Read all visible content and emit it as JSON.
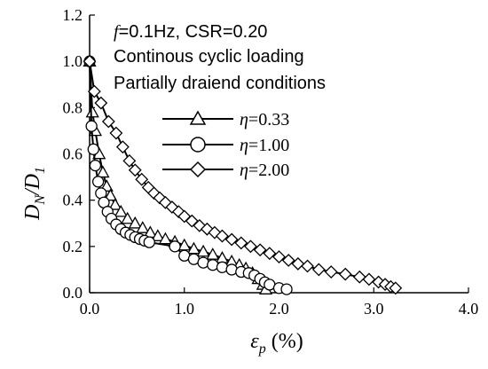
{
  "chart_data": {
    "type": "line",
    "xlim": [
      0,
      4.0
    ],
    "ylim": [
      0,
      1.2
    ],
    "x_ticks": [
      "0.0",
      "1.0",
      "2.0",
      "3.0",
      "4.0"
    ],
    "y_ticks": [
      "0.0",
      "0.2",
      "0.4",
      "0.6",
      "0.8",
      "1.0",
      "1.2"
    ],
    "xlabel": {
      "main": "ε",
      "sub": "p",
      "rest": " (%)"
    },
    "ylabel": {
      "a": "D",
      "a_sub": "N",
      "b": "/D",
      "b_sub": "1"
    },
    "annotations": {
      "line1_f": "f",
      "line1_rest": "=0.1Hz,  CSR=0.20",
      "line2": "Continous cyclic loading",
      "line3": "Partially draiend conditions"
    },
    "legend_placement": "center",
    "series": [
      {
        "name": "η=0.33",
        "eta": "η",
        "value": "=0.33",
        "marker": "triangle",
        "points": [
          [
            0.0,
            1.0
          ],
          [
            0.03,
            0.78
          ],
          [
            0.06,
            0.7
          ],
          [
            0.1,
            0.6
          ],
          [
            0.14,
            0.52
          ],
          [
            0.18,
            0.46
          ],
          [
            0.22,
            0.42
          ],
          [
            0.27,
            0.38
          ],
          [
            0.33,
            0.35
          ],
          [
            0.4,
            0.32
          ],
          [
            0.48,
            0.3
          ],
          [
            0.56,
            0.28
          ],
          [
            0.64,
            0.26
          ],
          [
            0.72,
            0.245
          ],
          [
            0.8,
            0.232
          ],
          [
            0.9,
            0.22
          ],
          [
            1.0,
            0.205
          ],
          [
            1.1,
            0.19
          ],
          [
            1.2,
            0.178
          ],
          [
            1.3,
            0.165
          ],
          [
            1.4,
            0.15
          ],
          [
            1.5,
            0.135
          ],
          [
            1.58,
            0.12
          ],
          [
            1.65,
            0.105
          ],
          [
            1.72,
            0.085
          ],
          [
            1.78,
            0.06
          ],
          [
            1.83,
            0.035
          ],
          [
            1.86,
            0.015
          ]
        ]
      },
      {
        "name": "η=1.00",
        "eta": "η",
        "value": "=1.00",
        "marker": "circle",
        "points": [
          [
            0.0,
            1.0
          ],
          [
            0.02,
            0.72
          ],
          [
            0.04,
            0.62
          ],
          [
            0.06,
            0.55
          ],
          [
            0.09,
            0.48
          ],
          [
            0.12,
            0.43
          ],
          [
            0.15,
            0.39
          ],
          [
            0.19,
            0.35
          ],
          [
            0.23,
            0.32
          ],
          [
            0.28,
            0.295
          ],
          [
            0.33,
            0.275
          ],
          [
            0.38,
            0.26
          ],
          [
            0.43,
            0.25
          ],
          [
            0.48,
            0.24
          ],
          [
            0.53,
            0.232
          ],
          [
            0.58,
            0.225
          ],
          [
            0.63,
            0.218
          ],
          [
            0.9,
            0.2
          ],
          [
            1.0,
            0.16
          ],
          [
            1.1,
            0.145
          ],
          [
            1.2,
            0.13
          ],
          [
            1.3,
            0.12
          ],
          [
            1.4,
            0.11
          ],
          [
            1.5,
            0.1
          ],
          [
            1.6,
            0.09
          ],
          [
            1.68,
            0.085
          ],
          [
            1.74,
            0.075
          ],
          [
            1.8,
            0.06
          ],
          [
            1.85,
            0.045
          ],
          [
            1.9,
            0.035
          ],
          [
            2.0,
            0.02
          ],
          [
            2.08,
            0.015
          ]
        ]
      },
      {
        "name": "η=2.00",
        "eta": "η",
        "value": "=2.00",
        "marker": "diamond",
        "points": [
          [
            0.0,
            1.0
          ],
          [
            0.05,
            0.87
          ],
          [
            0.12,
            0.82
          ],
          [
            0.2,
            0.74
          ],
          [
            0.28,
            0.69
          ],
          [
            0.35,
            0.63
          ],
          [
            0.42,
            0.57
          ],
          [
            0.48,
            0.53
          ],
          [
            0.55,
            0.49
          ],
          [
            0.62,
            0.455
          ],
          [
            0.68,
            0.43
          ],
          [
            0.74,
            0.41
          ],
          [
            0.8,
            0.39
          ],
          [
            0.87,
            0.37
          ],
          [
            0.94,
            0.35
          ],
          [
            1.0,
            0.33
          ],
          [
            1.08,
            0.31
          ],
          [
            1.16,
            0.29
          ],
          [
            1.24,
            0.275
          ],
          [
            1.32,
            0.26
          ],
          [
            1.4,
            0.245
          ],
          [
            1.5,
            0.23
          ],
          [
            1.6,
            0.215
          ],
          [
            1.7,
            0.2
          ],
          [
            1.8,
            0.185
          ],
          [
            1.9,
            0.17
          ],
          [
            2.0,
            0.155
          ],
          [
            2.1,
            0.14
          ],
          [
            2.2,
            0.125
          ],
          [
            2.3,
            0.115
          ],
          [
            2.42,
            0.1
          ],
          [
            2.55,
            0.09
          ],
          [
            2.7,
            0.08
          ],
          [
            2.85,
            0.068
          ],
          [
            2.95,
            0.058
          ],
          [
            3.05,
            0.046
          ],
          [
            3.12,
            0.036
          ],
          [
            3.18,
            0.026
          ],
          [
            3.23,
            0.02
          ]
        ]
      }
    ]
  }
}
